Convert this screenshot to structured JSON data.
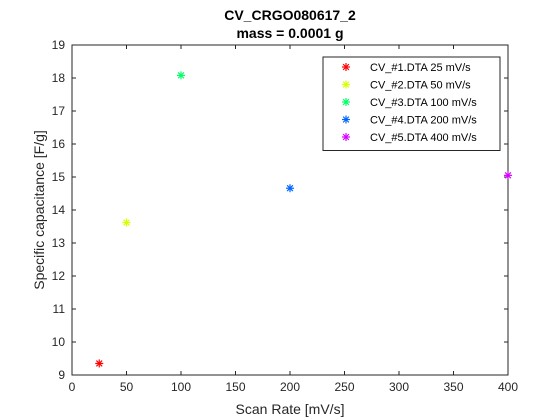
{
  "chart_data": {
    "type": "scatter",
    "title": "CV_CRGO080617_2",
    "subtitle": "mass = 0.0001 g",
    "xlabel": "Scan Rate [mV/s]",
    "ylabel": "Specific capacitance [F/g]",
    "xlim": [
      0,
      400
    ],
    "ylim": [
      9,
      19
    ],
    "xticks": [
      "0",
      "50",
      "100",
      "150",
      "200",
      "250",
      "300",
      "350",
      "400"
    ],
    "yticks": [
      "9",
      "10",
      "11",
      "12",
      "13",
      "14",
      "15",
      "16",
      "17",
      "18",
      "19"
    ],
    "grid": false,
    "legend_position": "top-right",
    "marker": "asterisk",
    "series": [
      {
        "name": "CV_#1.DTA 25 mV/s",
        "color": "#ff0000",
        "x": [
          25
        ],
        "y": [
          9.35
        ]
      },
      {
        "name": "CV_#2.DTA 50 mV/s",
        "color": "#d9ff00",
        "x": [
          50
        ],
        "y": [
          13.62
        ]
      },
      {
        "name": "CV_#3.DTA 100 mV/s",
        "color": "#00ff66",
        "x": [
          100
        ],
        "y": [
          18.08
        ]
      },
      {
        "name": "CV_#4.DTA 200 mV/s",
        "color": "#0066ff",
        "x": [
          200
        ],
        "y": [
          14.66
        ]
      },
      {
        "name": "CV_#5.DTA 400 mV/s",
        "color": "#d900ff",
        "x": [
          400
        ],
        "y": [
          15.05
        ]
      }
    ]
  }
}
